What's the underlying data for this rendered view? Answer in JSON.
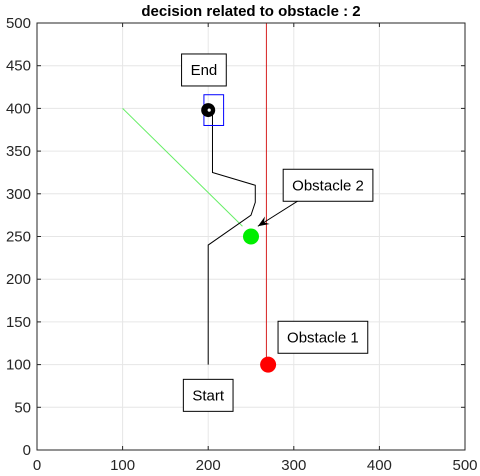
{
  "chart_data": {
    "type": "scatter",
    "title": "decision related to obstacle  : 2",
    "xlabel": "",
    "ylabel": "",
    "xlim": [
      0,
      500
    ],
    "ylim": [
      0,
      500
    ],
    "xticks": [
      0,
      100,
      200,
      300,
      400,
      500
    ],
    "yticks": [
      0,
      50,
      100,
      150,
      200,
      250,
      300,
      350,
      400,
      450,
      500
    ],
    "grid": true,
    "colors": {
      "path": "#000000",
      "obstacle1": "#ff0000",
      "obstacle2": "#00ee00",
      "obstacle1_track": "#d62020",
      "decision_line": "#66ee66",
      "goal_box": "#0000ff",
      "goal_marker": "#000000",
      "axes": "#262626",
      "grid": "#e6e6e6"
    },
    "robot_path": {
      "x": [
        200,
        200,
        250,
        255,
        255,
        205,
        205
      ],
      "y": [
        100,
        240,
        275,
        290,
        310,
        325,
        395
      ]
    },
    "obstacle1_track": {
      "x": [
        268,
        268
      ],
      "y": [
        100,
        500
      ]
    },
    "decision_line": {
      "x": [
        100,
        240
      ],
      "y": [
        400,
        262
      ]
    },
    "goal_box": {
      "x": [
        195,
        218
      ],
      "y": [
        380,
        416
      ]
    },
    "points": [
      {
        "name": "goal",
        "x": 200,
        "y": 398,
        "color": "#000000"
      },
      {
        "name": "obstacle2",
        "x": 250,
        "y": 250,
        "color": "#00ee00"
      },
      {
        "name": "obstacle1",
        "x": 270,
        "y": 100,
        "color": "#ff0000"
      }
    ],
    "annotations": [
      {
        "text": "End",
        "x": 195,
        "y": 445
      },
      {
        "text": "Start",
        "x": 200,
        "y": 64
      },
      {
        "text": "Obstacle 1",
        "x": 334,
        "y": 132
      },
      {
        "text": "Obstacle 2",
        "x": 340,
        "y": 310
      }
    ],
    "arrow": {
      "from": [
        318,
        300
      ],
      "to": [
        258,
        262
      ]
    }
  }
}
